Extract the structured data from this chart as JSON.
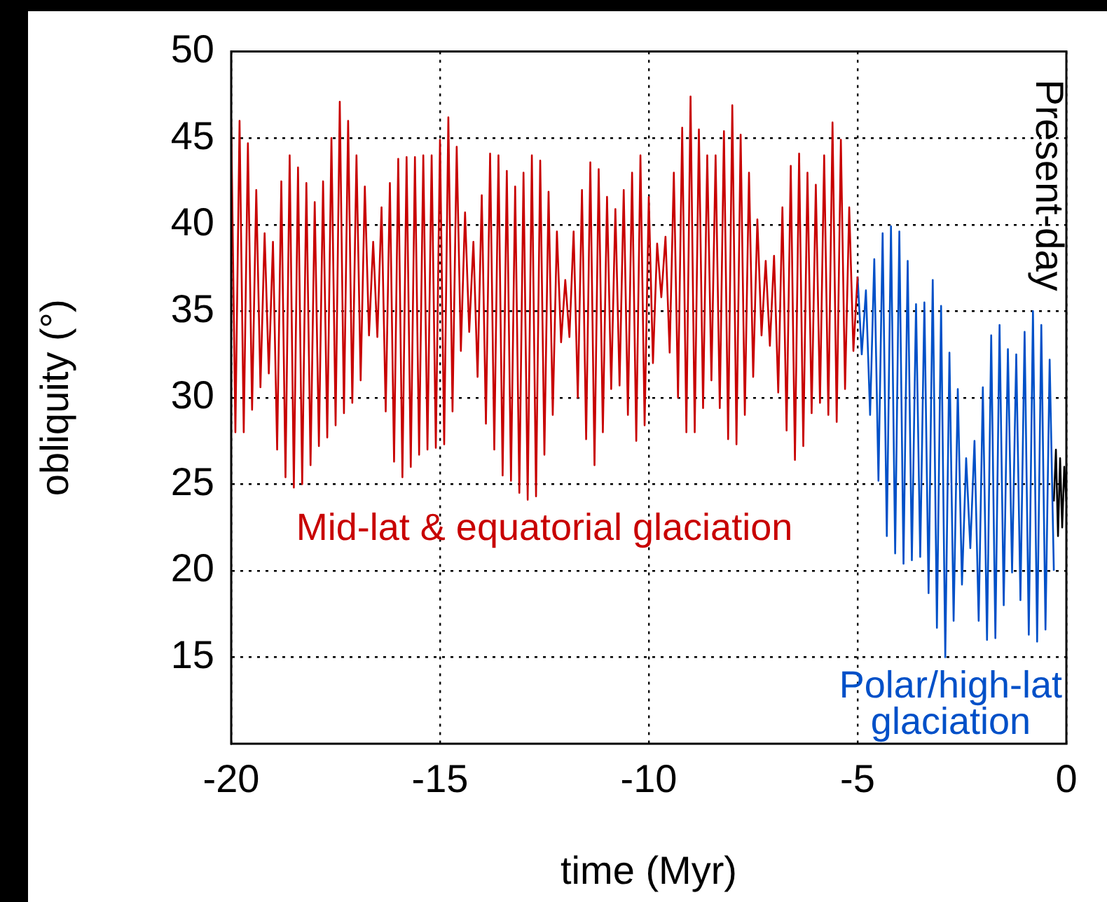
{
  "chart_data": {
    "type": "line",
    "xlabel": "time (Myr)",
    "ylabel": "obliquity (°)",
    "xlim": [
      -20,
      0
    ],
    "xticks": [
      -20,
      -15,
      -10,
      -5,
      0
    ],
    "ylim": [
      10,
      50
    ],
    "yticks": [
      15,
      20,
      25,
      30,
      35,
      40,
      45,
      50
    ],
    "grid": true,
    "legend": false,
    "marker": "none",
    "line_style": "solid",
    "annotations": [
      "Present-day"
    ],
    "series": [
      {
        "name": "Mid-lat & equatorial glaciation",
        "color": "#c80000",
        "x": [
          -20.0,
          -19.9,
          -19.8,
          -19.7,
          -19.6,
          -19.5,
          -19.4,
          -19.3,
          -19.2,
          -19.1,
          -19.0,
          -18.9,
          -18.8,
          -18.7,
          -18.6,
          -18.5,
          -18.4,
          -18.3,
          -18.2,
          -18.1,
          -18.0,
          -17.9,
          -17.8,
          -17.7,
          -17.6,
          -17.5,
          -17.4,
          -17.3,
          -17.2,
          -17.1,
          -17.0,
          -16.9,
          -16.8,
          -16.7,
          -16.6,
          -16.5,
          -16.4,
          -16.3,
          -16.2,
          -16.1,
          -16.0,
          -15.9,
          -15.8,
          -15.7,
          -15.6,
          -15.5,
          -15.4,
          -15.3,
          -15.2,
          -15.1,
          -15.0,
          -14.9,
          -14.8,
          -14.7,
          -14.6,
          -14.5,
          -14.4,
          -14.3,
          -14.2,
          -14.1,
          -14.0,
          -13.9,
          -13.8,
          -13.7,
          -13.6,
          -13.5,
          -13.4,
          -13.3,
          -13.2,
          -13.1,
          -13.0,
          -12.9,
          -12.8,
          -12.7,
          -12.6,
          -12.5,
          -12.4,
          -12.3,
          -12.2,
          -12.1,
          -12.0,
          -11.9,
          -11.8,
          -11.7,
          -11.6,
          -11.5,
          -11.4,
          -11.3,
          -11.2,
          -11.1,
          -11.0,
          -10.9,
          -10.8,
          -10.7,
          -10.6,
          -10.5,
          -10.4,
          -10.3,
          -10.2,
          -10.1,
          -10.0,
          -9.9,
          -9.8,
          -9.7,
          -9.6,
          -9.5,
          -9.4,
          -9.3,
          -9.2,
          -9.1,
          -9.0,
          -8.9,
          -8.8,
          -8.7,
          -8.6,
          -8.5,
          -8.4,
          -8.3,
          -8.2,
          -8.1,
          -8.0,
          -7.9,
          -7.8,
          -7.7,
          -7.6,
          -7.5,
          -7.4,
          -7.3,
          -7.2,
          -7.1,
          -7.0,
          -6.9,
          -6.8,
          -6.7,
          -6.6,
          -6.5,
          -6.4,
          -6.3,
          -6.2,
          -6.1,
          -6.0,
          -5.9,
          -5.8,
          -5.7,
          -5.6,
          -5.5,
          -5.4,
          -5.3,
          -5.2,
          -5.1,
          -5.0
        ],
        "values": [
          46,
          28,
          46,
          28,
          44.7,
          29.3,
          42,
          30.6,
          39.5,
          31.4,
          39,
          27,
          42.5,
          25.4,
          44,
          24.8,
          43.3,
          25,
          42.4,
          26.1,
          41.3,
          27.2,
          42.5,
          27.7,
          45,
          28.4,
          47.1,
          29.1,
          46,
          29.7,
          44,
          31,
          42.2,
          33.6,
          39,
          33.5,
          41,
          29.2,
          42.4,
          26.3,
          43.8,
          25.4,
          43.9,
          26,
          43.9,
          26.7,
          44,
          27,
          44,
          27.1,
          44.9,
          27.3,
          46.2,
          29.2,
          44.5,
          32.7,
          40.7,
          33.8,
          39,
          31.2,
          41.7,
          28.5,
          44.1,
          27,
          44,
          25.5,
          43.1,
          25.2,
          42.2,
          24.5,
          43,
          24.1,
          44,
          24.3,
          43.7,
          26.7,
          41.9,
          29,
          39.6,
          33.2,
          36.8,
          33.5,
          39.6,
          30,
          42,
          27.6,
          43.6,
          26.1,
          43.2,
          28,
          41.6,
          30.5,
          40.9,
          30.7,
          42,
          29,
          43,
          27.5,
          44,
          28.4,
          41.6,
          32,
          38.9,
          35.8,
          39.3,
          32.6,
          43,
          30,
          45.6,
          28,
          47.4,
          28,
          45.5,
          29.4,
          44,
          31,
          44,
          29.4,
          45.4,
          27.6,
          46.9,
          27.3,
          45.2,
          29,
          43,
          31.2,
          40.3,
          33.6,
          37.9,
          33,
          38.2,
          30.3,
          41,
          28.1,
          43.4,
          26.4,
          44.1,
          27.2,
          43,
          29.1,
          42.3,
          29.7,
          44,
          29,
          45.9,
          28.6,
          44.9,
          30.5,
          41,
          32.7,
          37
        ]
      },
      {
        "name": "Polar/high-lat glaciation",
        "color": "#0050c8",
        "x": [
          -5.0,
          -4.9,
          -4.8,
          -4.7,
          -4.6,
          -4.5,
          -4.4,
          -4.3,
          -4.2,
          -4.1,
          -4.0,
          -3.9,
          -3.8,
          -3.7,
          -3.6,
          -3.5,
          -3.4,
          -3.3,
          -3.2,
          -3.1,
          -3.0,
          -2.9,
          -2.8,
          -2.7,
          -2.6,
          -2.5,
          -2.4,
          -2.3,
          -2.2,
          -2.1,
          -2.0,
          -1.9,
          -1.8,
          -1.7,
          -1.6,
          -1.5,
          -1.4,
          -1.3,
          -1.2,
          -1.1,
          -1.0,
          -0.9,
          -0.8,
          -0.7,
          -0.6,
          -0.5,
          -0.4,
          -0.3
        ],
        "values": [
          37,
          32.5,
          36.2,
          29,
          38,
          25.2,
          39.5,
          22,
          39.9,
          21,
          39.6,
          20.4,
          37.9,
          20.6,
          35.4,
          20.8,
          35.5,
          18.7,
          36.8,
          16.7,
          35.3,
          15,
          32.6,
          17.1,
          30.5,
          19.2,
          26.5,
          21.3,
          27.5,
          17.1,
          30.6,
          16,
          33.6,
          16.1,
          34.2,
          18,
          32.8,
          19.9,
          32.5,
          18.3,
          33.8,
          16.3,
          35,
          15.9,
          34.2,
          16.6,
          32.2,
          20
        ]
      },
      {
        "color": "#000000",
        "x": [
          -0.3,
          -0.25,
          -0.2,
          -0.15,
          -0.1,
          -0.05,
          0
        ],
        "values": [
          24,
          27,
          22,
          26.5,
          22.5,
          26,
          24
        ]
      }
    ]
  }
}
